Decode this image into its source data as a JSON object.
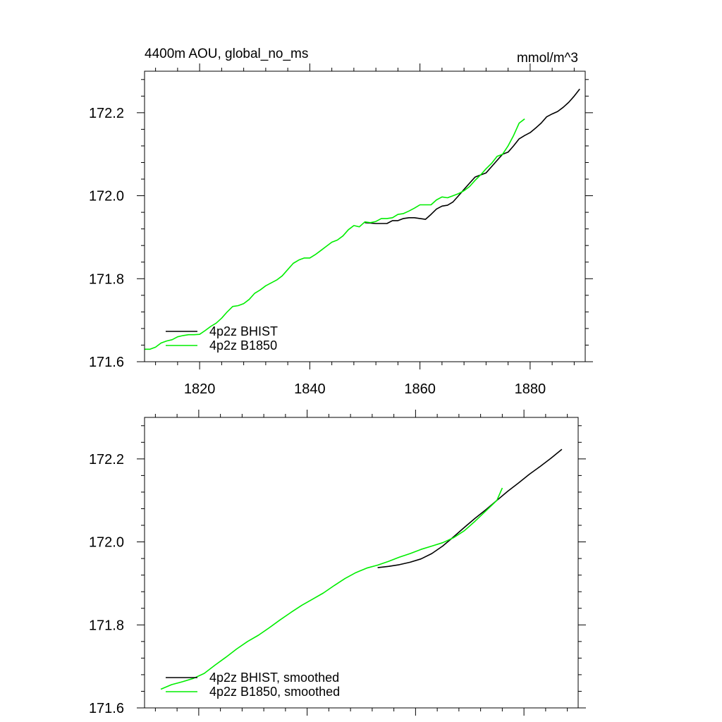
{
  "chart_data": [
    {
      "type": "line",
      "title": "4400m AOU, global_no_ms",
      "units": "mmol/m^3",
      "xlim": [
        1810,
        1890
      ],
      "ylim": [
        171.6,
        172.3
      ],
      "x_ticks": [
        1820,
        1840,
        1860,
        1880
      ],
      "y_ticks": [
        171.6,
        171.8,
        172.0,
        172.2
      ],
      "y_tick_labels": [
        "171.6",
        "171.8",
        "172.0",
        "172.2"
      ],
      "x_tick_labels": [
        "1820",
        "1840",
        "1860",
        "1880"
      ],
      "legend_position": "bottom-left",
      "series": [
        {
          "name": "4p2z BHIST",
          "color": "#000000",
          "x": [
            1850,
            1852,
            1854,
            1855,
            1856,
            1857,
            1858,
            1859,
            1860,
            1861,
            1862,
            1863,
            1864,
            1865,
            1866,
            1867,
            1868,
            1869,
            1870,
            1871,
            1872,
            1873,
            1874,
            1875,
            1876,
            1877,
            1878,
            1879,
            1880,
            1881,
            1882,
            1883,
            1884,
            1885,
            1886,
            1887,
            1888,
            1889
          ],
          "y": [
            171.935,
            171.933,
            171.933,
            171.94,
            171.94,
            171.945,
            171.947,
            171.947,
            171.945,
            171.943,
            171.955,
            171.968,
            171.975,
            171.977,
            171.985,
            172.0,
            172.015,
            172.03,
            172.045,
            172.05,
            172.055,
            172.07,
            172.085,
            172.1,
            172.105,
            172.12,
            172.137,
            172.145,
            172.152,
            172.163,
            172.175,
            172.19,
            172.197,
            172.203,
            172.213,
            172.225,
            172.24,
            172.257
          ]
        },
        {
          "name": "4p2z B1850",
          "color": "#00ee00",
          "x": [
            1810,
            1811,
            1812,
            1813,
            1814,
            1815,
            1816,
            1817,
            1818,
            1819,
            1820,
            1821,
            1822,
            1823,
            1824,
            1825,
            1826,
            1827,
            1828,
            1829,
            1830,
            1831,
            1832,
            1833,
            1834,
            1835,
            1836,
            1837,
            1838,
            1839,
            1840,
            1841,
            1842,
            1843,
            1844,
            1845,
            1846,
            1847,
            1848,
            1849,
            1850,
            1851,
            1852,
            1853,
            1854,
            1855,
            1856,
            1857,
            1858,
            1859,
            1860,
            1861,
            1862,
            1863,
            1864,
            1865,
            1866,
            1867,
            1868,
            1869,
            1870,
            1871,
            1872,
            1873,
            1874,
            1875,
            1876,
            1877,
            1878,
            1879
          ],
          "y": [
            171.63,
            171.63,
            171.635,
            171.645,
            171.65,
            171.653,
            171.66,
            171.663,
            171.665,
            171.665,
            171.666,
            171.675,
            171.685,
            171.693,
            171.705,
            171.72,
            171.733,
            171.735,
            171.74,
            171.75,
            171.765,
            171.773,
            171.783,
            171.79,
            171.797,
            171.807,
            171.822,
            171.837,
            171.845,
            171.85,
            171.85,
            171.858,
            171.868,
            171.878,
            171.888,
            171.893,
            171.903,
            171.918,
            171.928,
            171.925,
            171.937,
            171.935,
            171.938,
            171.945,
            171.945,
            171.947,
            171.955,
            171.957,
            171.963,
            171.97,
            171.978,
            171.978,
            171.978,
            171.99,
            171.997,
            171.995,
            172.0,
            172.005,
            172.012,
            172.022,
            172.037,
            172.05,
            172.065,
            172.078,
            172.095,
            172.1,
            172.12,
            172.145,
            172.175,
            172.185
          ]
        }
      ]
    },
    {
      "type": "line",
      "title": "",
      "xlim": [
        1810,
        1890
      ],
      "ylim": [
        171.6,
        172.3
      ],
      "x_ticks": [
        1820,
        1840,
        1860,
        1880
      ],
      "y_ticks": [
        171.6,
        171.8,
        172.0,
        172.2
      ],
      "y_tick_labels": [
        "171.6",
        "171.8",
        "172.0",
        "172.2"
      ],
      "legend_position": "bottom-left",
      "series": [
        {
          "name": "4p2z BHIST, smoothed",
          "color": "#000000",
          "x": [
            1853,
            1855,
            1857,
            1859,
            1861,
            1863,
            1865,
            1867,
            1869,
            1871,
            1873,
            1875,
            1877,
            1879,
            1881,
            1883,
            1885,
            1887
          ],
          "y": [
            171.938,
            171.941,
            171.945,
            171.951,
            171.959,
            171.972,
            171.99,
            172.012,
            172.035,
            172.057,
            172.078,
            172.1,
            172.122,
            172.142,
            172.163,
            172.182,
            172.202,
            172.223
          ]
        },
        {
          "name": "4p2z B1850, smoothed",
          "color": "#00ee00",
          "x": [
            1813,
            1815,
            1817,
            1819,
            1821,
            1823,
            1825,
            1827,
            1829,
            1831,
            1833,
            1835,
            1837,
            1839,
            1841,
            1843,
            1845,
            1847,
            1849,
            1851,
            1853,
            1855,
            1857,
            1859,
            1861,
            1863,
            1865,
            1867,
            1869,
            1871,
            1873,
            1875,
            1876
          ],
          "y": [
            171.645,
            171.656,
            171.663,
            171.671,
            171.683,
            171.703,
            171.722,
            171.742,
            171.76,
            171.775,
            171.793,
            171.812,
            171.83,
            171.847,
            171.862,
            171.877,
            171.895,
            171.912,
            171.926,
            171.937,
            171.944,
            171.953,
            171.963,
            171.972,
            171.982,
            171.99,
            171.998,
            172.01,
            172.027,
            172.05,
            172.075,
            172.1,
            172.13
          ]
        }
      ]
    }
  ]
}
